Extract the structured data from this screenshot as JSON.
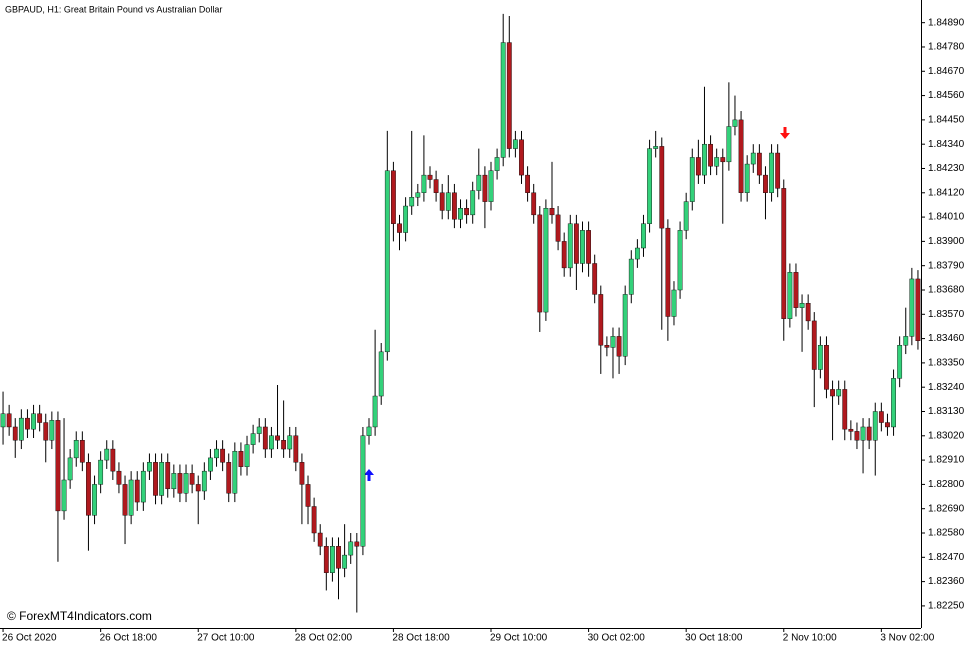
{
  "chart_data": {
    "type": "candlestick",
    "title": "GBPAUD, H1:  Great Britain Pound vs Australian Dollar",
    "watermark": "© ForexMT4Indicators.com",
    "up_color": "#33d17a",
    "down_color": "#b0191e",
    "wick_color": "#000000",
    "categories": [
      "26 Oct 2020",
      null,
      null,
      null,
      null,
      null,
      null,
      null,
      null,
      null,
      null,
      null,
      null,
      null,
      null,
      null,
      "26 Oct 18:00",
      null,
      null,
      null,
      null,
      null,
      null,
      null,
      null,
      null,
      null,
      null,
      null,
      null,
      null,
      null,
      "27 Oct 10:00",
      null,
      null,
      null,
      null,
      null,
      null,
      null,
      null,
      null,
      null,
      null,
      null,
      null,
      null,
      null,
      "28 Oct 02:00",
      null,
      null,
      null,
      null,
      null,
      null,
      null,
      null,
      null,
      null,
      null,
      null,
      null,
      null,
      null,
      "28 Oct 18:00",
      null,
      null,
      null,
      null,
      null,
      null,
      null,
      null,
      null,
      null,
      null,
      null,
      null,
      null,
      null,
      "29 Oct 10:00",
      null,
      null,
      null,
      null,
      null,
      null,
      null,
      null,
      null,
      null,
      null,
      null,
      null,
      null,
      null,
      "30 Oct 02:00",
      null,
      null,
      null,
      null,
      null,
      null,
      null,
      null,
      null,
      null,
      null,
      null,
      null,
      null,
      null,
      "30 Oct 18:00",
      null,
      null,
      null,
      null,
      null,
      null,
      null,
      null,
      null,
      null,
      null,
      null,
      null,
      null,
      null,
      "2 Nov 10:00",
      null,
      null,
      null,
      null,
      null,
      null,
      null,
      null,
      null,
      null,
      null,
      null,
      null,
      null,
      null,
      "3 Nov 02:00",
      null,
      null,
      null,
      null,
      null,
      null
    ],
    "open": [
      1.8306,
      1.8312,
      1.8306,
      1.83,
      1.831,
      1.8305,
      1.8312,
      1.8308,
      1.83,
      1.8309,
      1.8268,
      1.8282,
      1.8292,
      1.83,
      1.829,
      1.8266,
      1.828,
      1.8291,
      1.8296,
      1.8286,
      1.828,
      1.8266,
      1.8282,
      1.8272,
      1.8286,
      1.829,
      1.8275,
      1.829,
      1.8278,
      1.8285,
      1.8276,
      1.8285,
      1.828,
      1.8277,
      1.8286,
      1.8292,
      1.8296,
      1.829,
      1.8276,
      1.8295,
      1.8288,
      1.8298,
      1.8303,
      1.8306,
      1.8296,
      1.8302,
      1.83,
      1.8296,
      1.8302,
      1.829,
      1.828,
      1.827,
      1.8258,
      1.8252,
      1.824,
      1.8252,
      1.8242,
      1.8248,
      1.8254,
      1.8252,
      1.8302,
      1.8306,
      1.832,
      1.834,
      1.8422,
      1.8398,
      1.8394,
      1.8406,
      1.841,
      1.8412,
      1.842,
      1.8418,
      1.8412,
      1.8404,
      1.8412,
      1.84,
      1.8405,
      1.8402,
      1.8413,
      1.842,
      1.8408,
      1.8422,
      1.8428,
      1.848,
      1.8432,
      1.8436,
      1.842,
      1.8412,
      1.8402,
      1.8358,
      1.8405,
      1.8402,
      1.839,
      1.8378,
      1.8398,
      1.838,
      1.8395,
      1.838,
      1.8366,
      1.8343,
      1.8342,
      1.8347,
      1.8338,
      1.8366,
      1.8382,
      1.8387,
      1.8398,
      1.8432,
      1.8433,
      1.8396,
      1.8356,
      1.8368,
      1.8395,
      1.8408,
      1.8428,
      1.842,
      1.8434,
      1.8424,
      1.8428,
      1.8426,
      1.8442,
      1.8445,
      1.8412,
      1.8425,
      1.843,
      1.842,
      1.8412,
      1.843,
      1.8414,
      1.8355,
      1.8376,
      1.836,
      1.8362,
      1.8354,
      1.8332,
      1.8343,
      1.8323,
      1.832,
      1.8323,
      1.8305,
      1.8304,
      1.83,
      1.8306,
      1.83,
      1.8313,
      1.8308,
      1.8306,
      1.8328,
      1.8343,
      1.8347,
      1.8373
    ],
    "high": [
      1.8322,
      1.8316,
      1.831,
      1.8314,
      1.8314,
      1.8316,
      1.8316,
      1.8312,
      1.8313,
      1.8313,
      1.831,
      1.8296,
      1.8304,
      1.8304,
      1.8294,
      1.8284,
      1.8295,
      1.83,
      1.83,
      1.829,
      1.8284,
      1.8286,
      1.8286,
      1.829,
      1.8294,
      1.8294,
      1.8294,
      1.8294,
      1.8289,
      1.8289,
      1.8289,
      1.8289,
      1.8284,
      1.829,
      1.8296,
      1.83,
      1.83,
      1.8294,
      1.8299,
      1.8299,
      1.8302,
      1.8307,
      1.831,
      1.831,
      1.8306,
      1.8325,
      1.8318,
      1.8306,
      1.8306,
      1.8294,
      1.8284,
      1.8274,
      1.8262,
      1.8256,
      1.8256,
      1.8256,
      1.8262,
      1.8258,
      1.8258,
      1.8306,
      1.831,
      1.835,
      1.8344,
      1.844,
      1.8426,
      1.8402,
      1.841,
      1.844,
      1.8416,
      1.8438,
      1.8424,
      1.8422,
      1.8416,
      1.842,
      1.8416,
      1.8409,
      1.8409,
      1.8417,
      1.8432,
      1.8424,
      1.8426,
      1.8432,
      1.8493,
      1.8492,
      1.844,
      1.844,
      1.8424,
      1.8416,
      1.8406,
      1.8409,
      1.8426,
      1.8406,
      1.8394,
      1.8402,
      1.8402,
      1.8399,
      1.8399,
      1.8384,
      1.837,
      1.8347,
      1.8351,
      1.8351,
      1.837,
      1.8386,
      1.8391,
      1.8402,
      1.8436,
      1.844,
      1.8437,
      1.84,
      1.8372,
      1.8399,
      1.8412,
      1.8432,
      1.8436,
      1.846,
      1.8438,
      1.8432,
      1.8432,
      1.8462,
      1.8456,
      1.8449,
      1.8429,
      1.8434,
      1.8434,
      1.8424,
      1.8434,
      1.8434,
      1.8418,
      1.838,
      1.838,
      1.8366,
      1.8366,
      1.8358,
      1.8347,
      1.8347,
      1.8327,
      1.8327,
      1.8327,
      1.8309,
      1.8308,
      1.831,
      1.831,
      1.8317,
      1.8317,
      1.8312,
      1.8332,
      1.8347,
      1.836,
      1.8378,
      1.8377
    ],
    "low": [
      1.8298,
      1.8302,
      1.8292,
      1.8296,
      1.8301,
      1.8301,
      1.8304,
      1.829,
      1.8296,
      1.8245,
      1.8264,
      1.8278,
      1.8288,
      1.8286,
      1.825,
      1.8262,
      1.8276,
      1.8287,
      1.8282,
      1.8276,
      1.8253,
      1.8262,
      1.8268,
      1.8268,
      1.8282,
      1.8271,
      1.8271,
      1.8274,
      1.8274,
      1.8272,
      1.8272,
      1.8276,
      1.8262,
      1.8273,
      1.8282,
      1.8288,
      1.8286,
      1.8272,
      1.8272,
      1.8284,
      1.8284,
      1.8294,
      1.8299,
      1.8292,
      1.8292,
      1.8296,
      1.8292,
      1.8292,
      1.8286,
      1.8262,
      1.8262,
      1.8254,
      1.8248,
      1.8232,
      1.8236,
      1.8228,
      1.8238,
      1.8244,
      1.8222,
      1.8248,
      1.8298,
      1.8302,
      1.8316,
      1.8336,
      1.839,
      1.8386,
      1.839,
      1.8402,
      1.8406,
      1.8408,
      1.8414,
      1.8408,
      1.84,
      1.84,
      1.8396,
      1.8396,
      1.8398,
      1.8398,
      1.8409,
      1.8396,
      1.8404,
      1.8418,
      1.8424,
      1.8428,
      1.8428,
      1.8416,
      1.8408,
      1.8398,
      1.8349,
      1.8354,
      1.8398,
      1.8386,
      1.8374,
      1.8374,
      1.8368,
      1.8376,
      1.8374,
      1.8362,
      1.833,
      1.8338,
      1.8328,
      1.833,
      1.8334,
      1.8362,
      1.8378,
      1.8383,
      1.8394,
      1.8428,
      1.835,
      1.8345,
      1.8352,
      1.8364,
      1.8391,
      1.8404,
      1.8416,
      1.8416,
      1.842,
      1.842,
      1.8398,
      1.8422,
      1.8438,
      1.8408,
      1.8408,
      1.8421,
      1.8416,
      1.84,
      1.8408,
      1.841,
      1.8345,
      1.8351,
      1.8356,
      1.834,
      1.835,
      1.8315,
      1.8328,
      1.8319,
      1.83,
      1.8316,
      1.83,
      1.83,
      1.8296,
      1.8285,
      1.8296,
      1.8284,
      1.8304,
      1.8302,
      1.8302,
      1.8324,
      1.8339,
      1.8343,
      1.8341
    ],
    "close": [
      1.8312,
      1.8306,
      1.83,
      1.831,
      1.8305,
      1.8312,
      1.8308,
      1.83,
      1.8309,
      1.8268,
      1.8282,
      1.8292,
      1.83,
      1.829,
      1.8266,
      1.828,
      1.8291,
      1.8296,
      1.8286,
      1.828,
      1.8266,
      1.8282,
      1.8272,
      1.8286,
      1.829,
      1.8275,
      1.829,
      1.8278,
      1.8285,
      1.8276,
      1.8285,
      1.828,
      1.8277,
      1.8286,
      1.8292,
      1.8296,
      1.829,
      1.8276,
      1.8295,
      1.8288,
      1.8298,
      1.8303,
      1.8306,
      1.8296,
      1.8302,
      1.83,
      1.8296,
      1.8302,
      1.829,
      1.828,
      1.827,
      1.8258,
      1.8252,
      1.824,
      1.8252,
      1.8242,
      1.8248,
      1.8254,
      1.8252,
      1.8302,
      1.8306,
      1.832,
      1.834,
      1.8422,
      1.8398,
      1.8394,
      1.8406,
      1.841,
      1.8412,
      1.842,
      1.8418,
      1.8412,
      1.8404,
      1.8412,
      1.84,
      1.8405,
      1.8402,
      1.8413,
      1.842,
      1.8408,
      1.8422,
      1.8428,
      1.848,
      1.8432,
      1.8436,
      1.842,
      1.8412,
      1.8402,
      1.8358,
      1.8405,
      1.8402,
      1.839,
      1.8378,
      1.8398,
      1.838,
      1.8395,
      1.838,
      1.8366,
      1.8343,
      1.8342,
      1.8347,
      1.8338,
      1.8366,
      1.8382,
      1.8387,
      1.8398,
      1.8432,
      1.8433,
      1.8396,
      1.8356,
      1.8368,
      1.8395,
      1.8408,
      1.8428,
      1.842,
      1.8434,
      1.8424,
      1.8428,
      1.8426,
      1.8442,
      1.8445,
      1.8412,
      1.8425,
      1.843,
      1.842,
      1.8412,
      1.843,
      1.8414,
      1.8355,
      1.8376,
      1.836,
      1.8362,
      1.8354,
      1.8332,
      1.8343,
      1.8323,
      1.832,
      1.8323,
      1.8305,
      1.8304,
      1.83,
      1.8306,
      1.83,
      1.8313,
      1.8308,
      1.8306,
      1.8328,
      1.8343,
      1.8347,
      1.8373,
      1.8345
    ],
    "ylim": [
      1.8215,
      1.8497
    ],
    "yticks": [
      {
        "value": 1.8225,
        "label": "1.82250"
      },
      {
        "value": 1.8236,
        "label": "1.82360"
      },
      {
        "value": 1.8247,
        "label": "1.82470"
      },
      {
        "value": 1.8258,
        "label": "1.82580"
      },
      {
        "value": 1.8269,
        "label": "1.82690"
      },
      {
        "value": 1.828,
        "label": "1.82800"
      },
      {
        "value": 1.8291,
        "label": "1.82910"
      },
      {
        "value": 1.8302,
        "label": "1.83020"
      },
      {
        "value": 1.8313,
        "label": "1.83130"
      },
      {
        "value": 1.8324,
        "label": "1.83240"
      },
      {
        "value": 1.8335,
        "label": "1.83350"
      },
      {
        "value": 1.8346,
        "label": "1.83460"
      },
      {
        "value": 1.8357,
        "label": "1.83570"
      },
      {
        "value": 1.8368,
        "label": "1.83680"
      },
      {
        "value": 1.8379,
        "label": "1.83790"
      },
      {
        "value": 1.839,
        "label": "1.83900"
      },
      {
        "value": 1.8401,
        "label": "1.84010"
      },
      {
        "value": 1.8412,
        "label": "1.84120"
      },
      {
        "value": 1.8423,
        "label": "1.84230"
      },
      {
        "value": 1.8434,
        "label": "1.84340"
      },
      {
        "value": 1.8445,
        "label": "1.84450"
      },
      {
        "value": 1.8456,
        "label": "1.84560"
      },
      {
        "value": 1.8467,
        "label": "1.84670"
      },
      {
        "value": 1.8478,
        "label": "1.84780"
      },
      {
        "value": 1.8489,
        "label": "1.84890"
      }
    ]
  }
}
